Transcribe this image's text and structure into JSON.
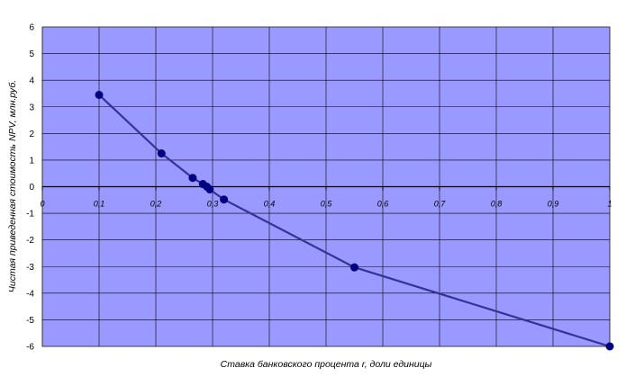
{
  "chart_data": {
    "type": "line",
    "title": "",
    "xlabel": "Ставка банковского процента r, доли единицы",
    "ylabel": "Чистая приведенная стоимость NPV, млн.руб.",
    "xlim": [
      0,
      1
    ],
    "ylim": [
      -6,
      6
    ],
    "xticks": [
      {
        "value": 0,
        "label": "0"
      },
      {
        "value": 0.1,
        "label": "0,1"
      },
      {
        "value": 0.2,
        "label": "0,2"
      },
      {
        "value": 0.3,
        "label": "0,3"
      },
      {
        "value": 0.4,
        "label": "0,4"
      },
      {
        "value": 0.5,
        "label": "0,5"
      },
      {
        "value": 0.6,
        "label": "0,6"
      },
      {
        "value": 0.7,
        "label": "0,7"
      },
      {
        "value": 0.8,
        "label": "0,8"
      },
      {
        "value": 0.9,
        "label": "0,9"
      },
      {
        "value": 1,
        "label": "1"
      }
    ],
    "yticks": [
      {
        "value": 6,
        "label": "6"
      },
      {
        "value": 5,
        "label": "5"
      },
      {
        "value": 4,
        "label": "4"
      },
      {
        "value": 3,
        "label": "3"
      },
      {
        "value": 2,
        "label": "2"
      },
      {
        "value": 1,
        "label": "1"
      },
      {
        "value": 0,
        "label": "0"
      },
      {
        "value": -1,
        "label": "-1"
      },
      {
        "value": -2,
        "label": "-2"
      },
      {
        "value": -3,
        "label": "-3"
      },
      {
        "value": -4,
        "label": "-4"
      },
      {
        "value": -5,
        "label": "-5"
      },
      {
        "value": -6,
        "label": "-6"
      }
    ],
    "grid": true,
    "series": [
      {
        "x": [
          0.1,
          0.21,
          0.265,
          0.283,
          0.29,
          0.295,
          0.32,
          0.55,
          1.0
        ],
        "y": [
          3.45,
          1.25,
          0.33,
          0.1,
          0.0,
          -0.1,
          -0.48,
          -3.03,
          -6.0
        ]
      }
    ],
    "colors": {
      "plot_background": "#9999ff",
      "grid": "#000000",
      "line": "#333399",
      "marker": "#000080"
    }
  }
}
